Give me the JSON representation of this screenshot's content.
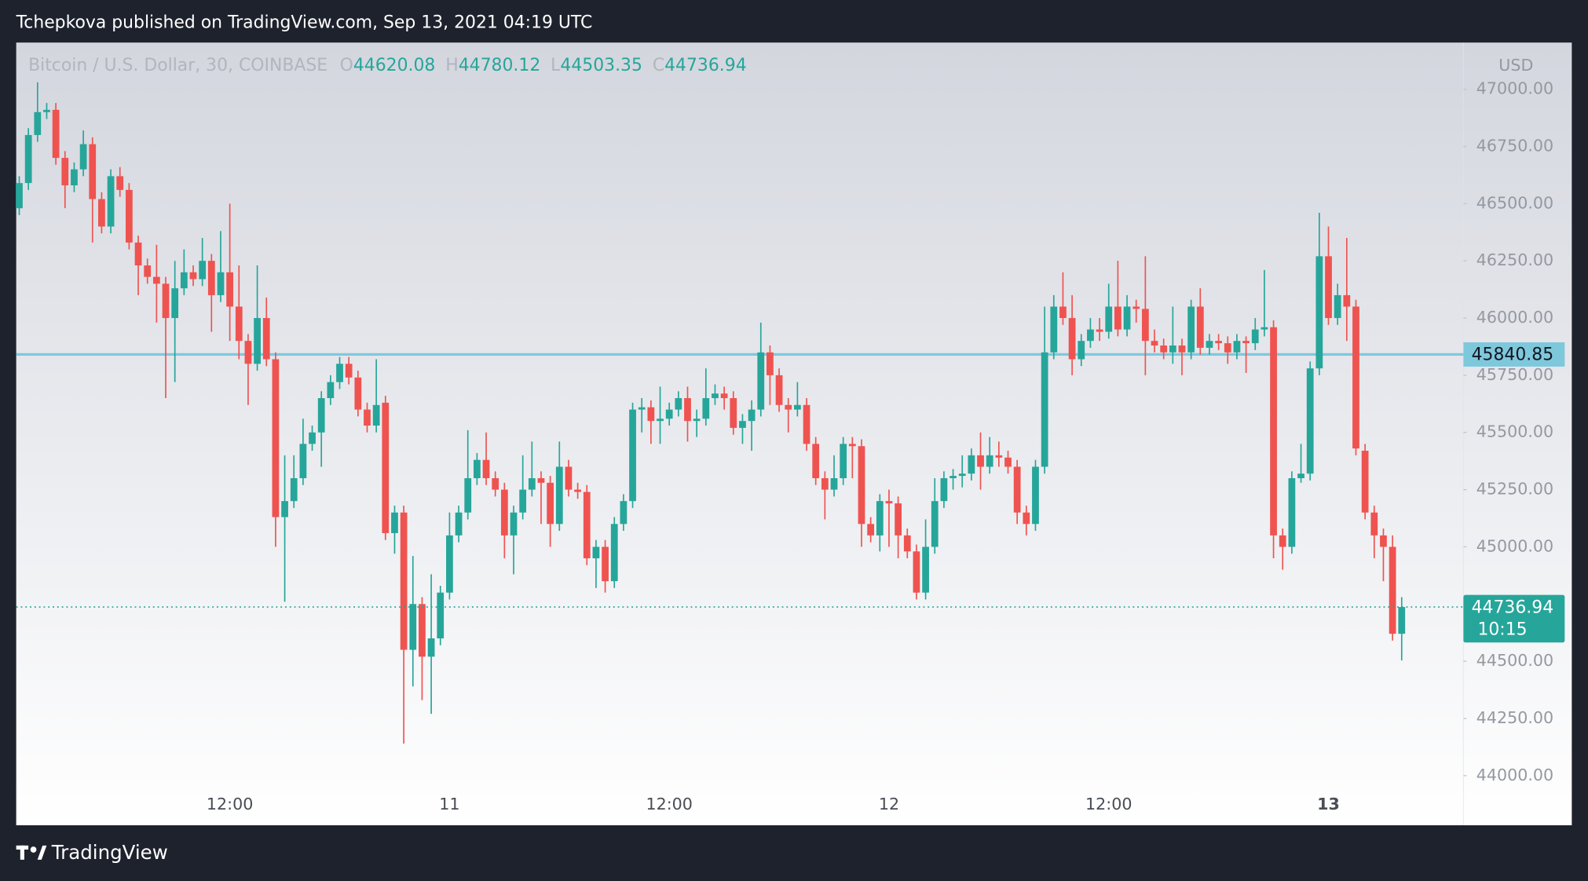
{
  "header": {
    "text": "Tchepkova published on TradingView.com, Sep 13, 2021 04:19 UTC"
  },
  "footer": {
    "brand": "TradingView"
  },
  "chart_data": {
    "type": "candlestick",
    "symbol": "Bitcoin / U.S. Dollar, 30, COINBASE",
    "ohlc_labels": [
      "O",
      "H",
      "L",
      "C"
    ],
    "currency": "USD",
    "countdown": "10:15",
    "up_color": "#26a69a",
    "down_color": "#ef5350",
    "grid": false,
    "hline": {
      "value": 45840.85,
      "color": "#7ec8dc"
    },
    "ylim": [
      43938,
      47204
    ],
    "yticks": [
      {
        "value": 44000,
        "label": "44000.00"
      },
      {
        "value": 44250,
        "label": "44250.00"
      },
      {
        "value": 44500,
        "label": "44500.00"
      },
      {
        "value": 44750,
        "label": "44750.00"
      },
      {
        "value": 45000,
        "label": "45000.00"
      },
      {
        "value": 45250,
        "label": "45250.00"
      },
      {
        "value": 45500,
        "label": "45500.00"
      },
      {
        "value": 45750,
        "label": "45750.00"
      },
      {
        "value": 46000,
        "label": "46000.00"
      },
      {
        "value": 46250,
        "label": "46250.00"
      },
      {
        "value": 46500,
        "label": "46500.00"
      },
      {
        "value": 46750,
        "label": "46750.00"
      },
      {
        "value": 47000,
        "label": "47000.00"
      }
    ],
    "categories": [
      null,
      null,
      null,
      null,
      null,
      null,
      null,
      null,
      null,
      null,
      null,
      null,
      null,
      null,
      null,
      null,
      null,
      null,
      null,
      null,
      null,
      null,
      null,
      "12:00",
      null,
      null,
      null,
      null,
      null,
      null,
      null,
      null,
      null,
      null,
      null,
      null,
      null,
      null,
      null,
      null,
      null,
      null,
      null,
      null,
      null,
      null,
      null,
      "11",
      null,
      null,
      null,
      null,
      null,
      null,
      null,
      null,
      null,
      null,
      null,
      null,
      null,
      null,
      null,
      null,
      null,
      null,
      null,
      null,
      null,
      null,
      null,
      "12:00",
      null,
      null,
      null,
      null,
      null,
      null,
      null,
      null,
      null,
      null,
      null,
      null,
      null,
      null,
      null,
      null,
      null,
      null,
      null,
      null,
      null,
      null,
      null,
      "12",
      null,
      null,
      null,
      null,
      null,
      null,
      null,
      null,
      null,
      null,
      null,
      null,
      null,
      null,
      null,
      null,
      null,
      null,
      null,
      null,
      null,
      null,
      null,
      "12:00",
      null,
      null,
      null,
      null,
      null,
      null,
      null,
      null,
      null,
      null,
      null,
      null,
      null,
      null,
      null,
      null,
      null,
      null,
      null,
      null,
      null,
      null,
      null,
      "13",
      null,
      null,
      null,
      null,
      null,
      null,
      null,
      null
    ],
    "open": [
      46480,
      46590,
      46800,
      46900,
      46910,
      46700,
      46580,
      46650,
      46760,
      46520,
      46400,
      46620,
      46560,
      46330,
      46230,
      46180,
      46150,
      46000,
      46130,
      46200,
      46170,
      46250,
      46100,
      46200,
      46050,
      45900,
      45800,
      46000,
      45820,
      45130,
      45200,
      45300,
      45450,
      45500,
      45650,
      45720,
      45800,
      45740,
      45600,
      45530,
      45630,
      45060,
      45150,
      44550,
      44750,
      44520,
      44600,
      44800,
      45050,
      45150,
      45300,
      45380,
      45300,
      45250,
      45050,
      45150,
      45250,
      45300,
      45280,
      45100,
      45350,
      45250,
      45240,
      44950,
      45000,
      44850,
      45100,
      45200,
      45600,
      45610,
      45550,
      45560,
      45600,
      45650,
      45550,
      45560,
      45650,
      45670,
      45650,
      45520,
      45550,
      45600,
      45850,
      45750,
      45620,
      45600,
      45620,
      45450,
      45300,
      45250,
      45300,
      45450,
      45440,
      45100,
      45050,
      45200,
      45190,
      45050,
      44980,
      44800,
      45000,
      45200,
      45300,
      45310,
      45320,
      45400,
      45350,
      45400,
      45390,
      45350,
      45150,
      45100,
      45350,
      45850,
      46050,
      46000,
      45820,
      45900,
      45950,
      45940,
      46050,
      45950,
      46050,
      46040,
      45900,
      45880,
      45850,
      45880,
      45850,
      46050,
      45870,
      45900,
      45890,
      45850,
      45900,
      45890,
      45950,
      45960,
      45050,
      45000,
      45300,
      45320,
      45780,
      46270,
      46000,
      46100,
      46050,
      45420,
      45150,
      45050,
      45000,
      44620.08
    ],
    "high": [
      46620,
      46830,
      47030,
      46940,
      46940,
      46730,
      46680,
      46820,
      46790,
      46550,
      46650,
      46660,
      46590,
      46360,
      46260,
      46320,
      46180,
      46250,
      46300,
      46230,
      46350,
      46280,
      46380,
      46500,
      46230,
      45930,
      46230,
      46090,
      45850,
      45400,
      45400,
      45560,
      45530,
      45680,
      45750,
      45830,
      45830,
      45770,
      45630,
      45820,
      45660,
      45180,
      45180,
      44960,
      44780,
      44880,
      44830,
      45150,
      45180,
      45510,
      45410,
      45500,
      45330,
      45280,
      45180,
      45400,
      45460,
      45330,
      45310,
      45460,
      45380,
      45280,
      45270,
      45030,
      45030,
      45130,
      45230,
      45630,
      45650,
      45640,
      45700,
      45630,
      45680,
      45700,
      45600,
      45780,
      45710,
      45700,
      45680,
      45580,
      45640,
      45980,
      45880,
      45780,
      45650,
      45720,
      45650,
      45480,
      45330,
      45400,
      45480,
      45480,
      45470,
      45130,
      45230,
      45250,
      45220,
      45080,
      45010,
      45120,
      45300,
      45330,
      45340,
      45400,
      45430,
      45500,
      45480,
      45460,
      45420,
      45380,
      45180,
      45380,
      46050,
      46100,
      46200,
      46100,
      45930,
      46000,
      46000,
      46150,
      46250,
      46100,
      46080,
      46270,
      45950,
      45910,
      46050,
      45910,
      46080,
      46130,
      45930,
      45930,
      45920,
      45930,
      45920,
      46000,
      46210,
      45990,
      45080,
      45330,
      45450,
      45810,
      46460,
      46400,
      46150,
      46350,
      46080,
      45450,
      45180,
      45080,
      45050,
      44780.12
    ],
    "low": [
      46450,
      46560,
      46770,
      46870,
      46670,
      46480,
      46550,
      46620,
      46330,
      46370,
      46370,
      46530,
      46300,
      46100,
      46150,
      45980,
      45650,
      45720,
      46100,
      46140,
      46140,
      45940,
      46070,
      45900,
      45820,
      45620,
      45770,
      45790,
      45000,
      44760,
      45170,
      45270,
      45420,
      45350,
      45620,
      45690,
      45710,
      45570,
      45500,
      45500,
      45030,
      44970,
      44140,
      44390,
      44330,
      44270,
      44570,
      44770,
      45020,
      45120,
      45270,
      45270,
      45220,
      44950,
      44880,
      45120,
      45220,
      45100,
      45000,
      45070,
      45220,
      45210,
      44920,
      44820,
      44800,
      44820,
      45070,
      45170,
      45500,
      45450,
      45450,
      45530,
      45570,
      45460,
      45480,
      45530,
      45620,
      45600,
      45490,
      45450,
      45420,
      45570,
      45620,
      45590,
      45500,
      45570,
      45420,
      45270,
      45120,
      45220,
      45270,
      45300,
      45000,
      45020,
      44980,
      45000,
      44950,
      44950,
      44770,
      44770,
      44970,
      45170,
      45250,
      45260,
      45290,
      45250,
      45320,
      45350,
      45320,
      45100,
      45050,
      45070,
      45320,
      45820,
      45970,
      45750,
      45790,
      45870,
      45900,
      45910,
      45920,
      45920,
      45980,
      45750,
      45850,
      45820,
      45800,
      45750,
      45820,
      45840,
      45840,
      45860,
      45800,
      45820,
      45760,
      45860,
      45920,
      44950,
      44900,
      44970,
      45280,
      45290,
      45750,
      45970,
      45970,
      45900,
      45400,
      45120,
      44950,
      44850,
      44590,
      44503.35
    ],
    "close": [
      46590,
      46800,
      46900,
      46910,
      46700,
      46580,
      46650,
      46760,
      46520,
      46400,
      46620,
      46560,
      46330,
      46230,
      46180,
      46150,
      46000,
      46130,
      46200,
      46170,
      46250,
      46100,
      46200,
      46050,
      45900,
      45800,
      46000,
      45820,
      45130,
      45200,
      45300,
      45450,
      45500,
      45650,
      45720,
      45800,
      45740,
      45600,
      45530,
      45620,
      45060,
      45150,
      44550,
      44750,
      44520,
      44600,
      44800,
      45050,
      45150,
      45300,
      45380,
      45300,
      45250,
      45050,
      45150,
      45250,
      45300,
      45280,
      45100,
      45350,
      45250,
      45240,
      44950,
      45000,
      44850,
      45100,
      45200,
      45600,
      45610,
      45550,
      45560,
      45600,
      45650,
      45550,
      45560,
      45650,
      45670,
      45650,
      45520,
      45550,
      45600,
      45850,
      45750,
      45620,
      45600,
      45620,
      45450,
      45300,
      45250,
      45300,
      45450,
      45440,
      45100,
      45050,
      45200,
      45190,
      45050,
      44980,
      44800,
      45000,
      45200,
      45300,
      45310,
      45320,
      45400,
      45350,
      45400,
      45390,
      45350,
      45150,
      45100,
      45350,
      45850,
      46050,
      46000,
      45820,
      45900,
      45950,
      45940,
      46050,
      45950,
      46050,
      46040,
      45900,
      45880,
      45850,
      45880,
      45850,
      46050,
      45870,
      45900,
      45890,
      45850,
      45900,
      45890,
      45950,
      45960,
      45050,
      45000,
      45300,
      45320,
      45780,
      46270,
      46000,
      46100,
      46050,
      45430,
      45150,
      45050,
      45000,
      44620.08,
      44736.94
    ]
  }
}
